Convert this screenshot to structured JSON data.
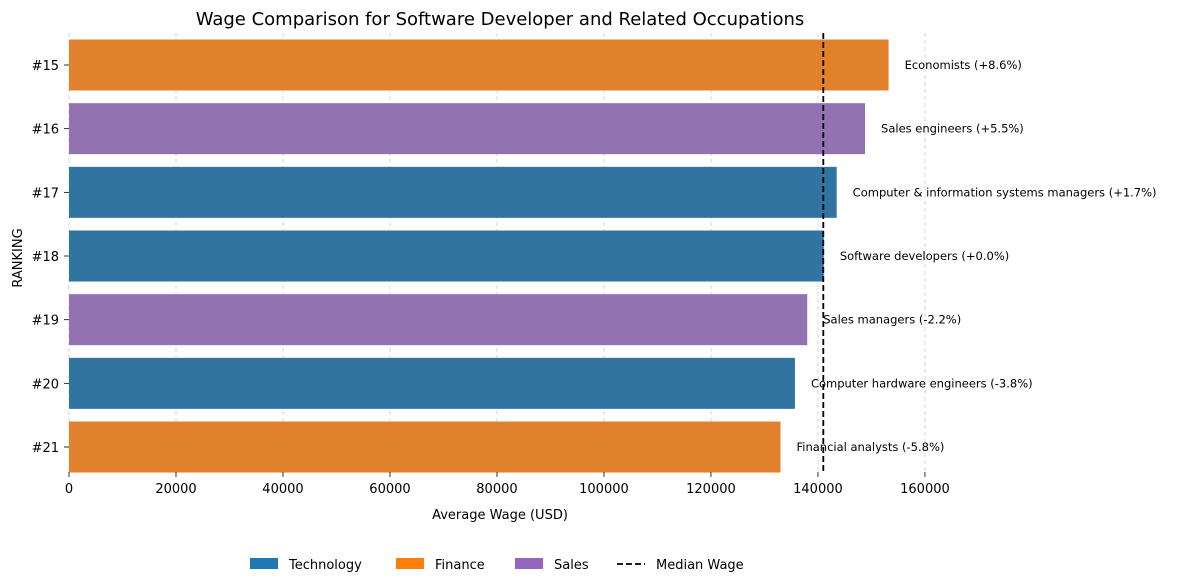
{
  "chart_data": {
    "type": "bar",
    "orientation": "horizontal",
    "title": "Wage Comparison for Software Developer and Related Occupations",
    "xlabel": "Average Wage (USD)",
    "ylabel": "RANKING",
    "xlim": [
      0,
      163000
    ],
    "xticks": [
      0,
      20000,
      40000,
      60000,
      80000,
      100000,
      120000,
      140000,
      160000
    ],
    "grid": "x-dashed",
    "legend_placement": "bottom-center",
    "median_wage": 141000,
    "bars": [
      {
        "rank": "#15",
        "category": "Finance",
        "value": 153200,
        "label": "Economists (+8.6%)"
      },
      {
        "rank": "#16",
        "category": "Sales",
        "value": 148800,
        "label": "Sales engineers (+5.5%)"
      },
      {
        "rank": "#17",
        "category": "Technology",
        "value": 143500,
        "label": "Computer & information systems managers (+1.7%)"
      },
      {
        "rank": "#18",
        "category": "Technology",
        "value": 141100,
        "label": "Software developers (+0.0%)"
      },
      {
        "rank": "#19",
        "category": "Sales",
        "value": 138000,
        "label": "Sales managers (-2.2%)"
      },
      {
        "rank": "#20",
        "category": "Technology",
        "value": 135700,
        "label": "Computer hardware engineers (-3.8%)"
      },
      {
        "rank": "#21",
        "category": "Finance",
        "value": 133000,
        "label": "Financial analysts (-5.8%)"
      }
    ],
    "category_colors": {
      "Technology": "#3274a1",
      "Finance": "#e1812c",
      "Sales": "#9372b2"
    },
    "legend": [
      {
        "label": "Technology",
        "kind": "patch",
        "color": "#1f77b4"
      },
      {
        "label": "Finance",
        "kind": "patch",
        "color": "#ff7f0e"
      },
      {
        "label": "Sales",
        "kind": "patch",
        "color": "#9467bd"
      },
      {
        "label": "Median Wage",
        "kind": "dashed-line",
        "color": "#000000"
      }
    ]
  }
}
